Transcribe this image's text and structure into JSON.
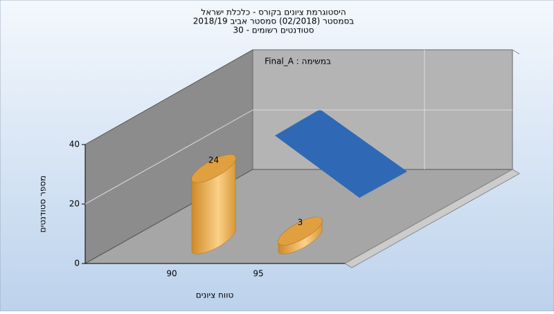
{
  "chart_data": {
    "type": "bar",
    "title": [
      "היסטוגרמת ציונים בקורס - כלכלת ישראל",
      "בסמסטר  (02/2018)  סמסטר אביב 2018/19",
      "סטודנטים רשומים - 30"
    ],
    "annotation": "במשימה : Final_A",
    "x_label": "טווח ציונים",
    "y_label": "מספר סטודנטים",
    "categories": [
      "90",
      "95"
    ],
    "values": [
      24,
      3
    ],
    "color": "#e0a040",
    "ylim": [
      0,
      40
    ],
    "yticks": [
      0,
      20,
      40
    ],
    "grid": true
  }
}
